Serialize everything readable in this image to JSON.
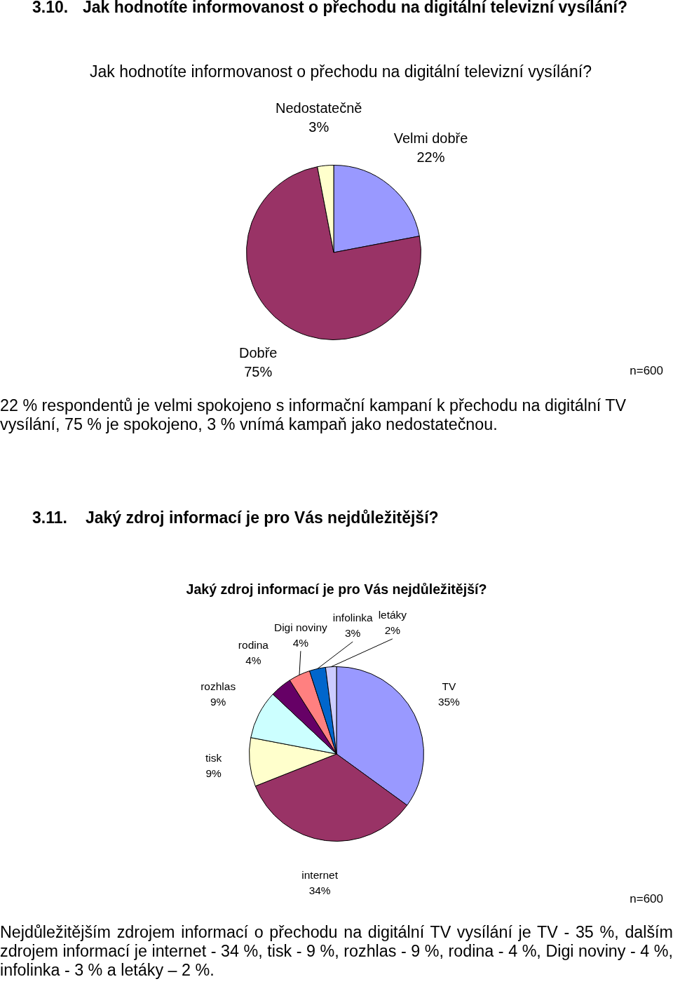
{
  "chart_data": [
    {
      "type": "pie",
      "title": "3.10. Jak hodnotíte informovanost o přechodu na digitální televizní vysílání?",
      "subtitle": "Jak hodnotíte informovanost o přechodu na digitální televizní vysílání?",
      "categories": [
        "Velmi dobře",
        "Dobře",
        "Nedostatečně"
      ],
      "values": [
        22,
        75,
        3
      ],
      "value_labels": [
        "22%",
        "75%",
        "3%"
      ],
      "colors": [
        "#9999ff",
        "#993366",
        "#ffffcc"
      ],
      "annotations": [
        "n=600",
        "22 % respondentů je velmi spokojeno s informační kampaní k přechodu na digitální TV vysílání, 75 % je spokojeno, 3 % vnímá kampaň jako nedostatečnou."
      ]
    },
    {
      "type": "pie",
      "title": "3.11. Jaký zdroj informací je pro Vás nejdůležitější?",
      "subtitle": "Jaký zdroj informací je pro Vás nejdůležitější?",
      "categories": [
        "TV",
        "internet",
        "tisk",
        "rozhlas",
        "rodina",
        "Digi noviny",
        "infolinka",
        "letáky"
      ],
      "values": [
        35,
        34,
        9,
        9,
        4,
        4,
        3,
        2
      ],
      "value_labels": [
        "35%",
        "34%",
        "9%",
        "9%",
        "4%",
        "4%",
        "3%",
        "2%"
      ],
      "colors": [
        "#9999ff",
        "#993366",
        "#ffffcc",
        "#ccffff",
        "#660066",
        "#ff8080",
        "#0066cc",
        "#ccccff"
      ],
      "annotations": [
        "n=600",
        "Nejdůležitějším zdrojem informací o přechodu na digitální TV vysílání je TV - 35 %, dalším zdrojem informací je internet - 34 %, tisk - 9 %, rozhlas - 9 %, rodina - 4 %, Digi noviny - 4 %, infolinka - 3 % a letáky – 2 %."
      ]
    }
  ]
}
